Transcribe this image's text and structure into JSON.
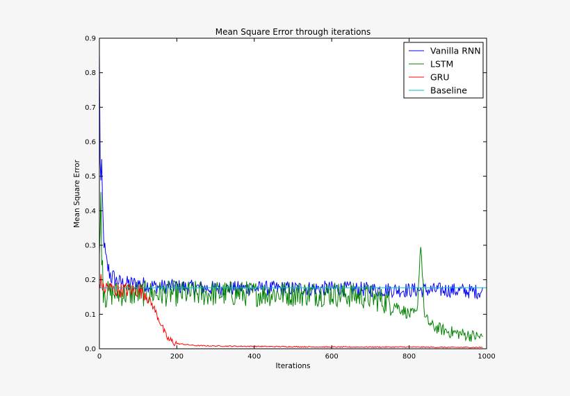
{
  "chart_data": {
    "type": "line",
    "title": "Mean Square Error through iterations",
    "xlabel": "Iterations",
    "ylabel": "Mean Square Error",
    "xlim": [
      0,
      1000
    ],
    "ylim": [
      0,
      0.9
    ],
    "x_ticks": [
      "0",
      "200",
      "400",
      "600",
      "800",
      "1000"
    ],
    "y_ticks": [
      "0.0",
      "0.1",
      "0.2",
      "0.3",
      "0.4",
      "0.5",
      "0.6",
      "0.7",
      "0.8",
      "0.9"
    ],
    "grid": false,
    "legend_position": "top-right",
    "series": [
      {
        "name": "Vanilla RNN",
        "color": "#0000ff",
        "x": [
          0,
          2,
          4,
          6,
          8,
          10,
          15,
          20,
          30,
          40,
          60,
          80,
          100,
          150,
          200,
          300,
          400,
          500,
          600,
          700,
          800,
          900,
          990
        ],
        "y": [
          0.85,
          0.55,
          0.48,
          0.52,
          0.42,
          0.34,
          0.27,
          0.24,
          0.21,
          0.2,
          0.19,
          0.19,
          0.19,
          0.18,
          0.18,
          0.175,
          0.175,
          0.175,
          0.175,
          0.172,
          0.17,
          0.17,
          0.165
        ]
      },
      {
        "name": "LSTM",
        "color": "#008000",
        "x": [
          0,
          3,
          6,
          10,
          20,
          40,
          100,
          200,
          400,
          600,
          700,
          760,
          800,
          820,
          830,
          840,
          860,
          900,
          950,
          990
        ],
        "y": [
          0.27,
          0.47,
          0.3,
          0.19,
          0.16,
          0.16,
          0.16,
          0.16,
          0.16,
          0.16,
          0.15,
          0.13,
          0.1,
          0.1,
          0.31,
          0.09,
          0.065,
          0.05,
          0.04,
          0.033
        ]
      },
      {
        "name": "GRU",
        "color": "#ff0000",
        "x": [
          0,
          5,
          10,
          20,
          40,
          60,
          80,
          100,
          120,
          140,
          160,
          170,
          180,
          200,
          250,
          300,
          400,
          500,
          600,
          700,
          800,
          900,
          990
        ],
        "y": [
          0.19,
          0.2,
          0.17,
          0.18,
          0.17,
          0.17,
          0.17,
          0.17,
          0.16,
          0.12,
          0.07,
          0.04,
          0.025,
          0.015,
          0.009,
          0.008,
          0.007,
          0.006,
          0.005,
          0.005,
          0.005,
          0.004,
          0.004
        ]
      },
      {
        "name": "Baseline",
        "color": "#00bfbf",
        "x": [
          0,
          1000
        ],
        "y": [
          0.177,
          0.177
        ]
      }
    ]
  }
}
